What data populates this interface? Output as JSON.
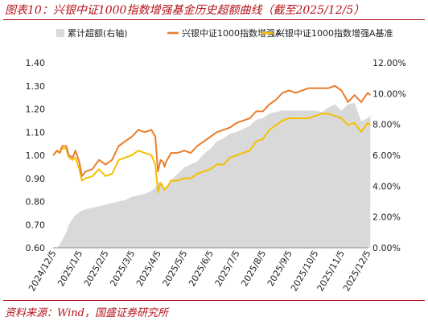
{
  "title": "图表10：兴银中证1000指数增强基金历史超额曲线（截至2025/12/5）",
  "source": "资料来源：Wind，国盛证券研究所",
  "chart_data": {
    "type": "line",
    "legend": [
      {
        "name": "累计超额(右轴)",
        "color": "#d9d9d9",
        "kind": "area"
      },
      {
        "name": "兴银中证1000指数增强A",
        "color": "#e97d2b",
        "kind": "line"
      },
      {
        "name": "兴银中证1000指数增强A基准",
        "color": "#f5c000",
        "kind": "line"
      }
    ],
    "legend_position": "top",
    "x_tick_labels": [
      "2024/12/5",
      "2025/1/5",
      "2025/2/5",
      "2025/3/5",
      "2025/4/5",
      "2025/5/5",
      "2025/6/5",
      "2025/7/5",
      "2025/8/5",
      "2025/9/5",
      "2025/10/5",
      "2025/11/5",
      "2025/12/5"
    ],
    "left_axis": {
      "min": 0.6,
      "max": 1.4,
      "ticks": [
        "0.60",
        "0.70",
        "0.80",
        "0.90",
        "1.00",
        "1.10",
        "1.20",
        "1.30",
        "1.40"
      ]
    },
    "right_axis": {
      "min": 0,
      "max": 12,
      "ticks": [
        "0.00%",
        "2.00%",
        "4.00%",
        "6.00%",
        "8.00%",
        "10.00%",
        "12.00%"
      ]
    },
    "x": [
      0,
      0.15,
      0.25,
      0.35,
      0.5,
      0.6,
      0.75,
      0.85,
      1.0,
      1.1,
      1.25,
      1.5,
      1.75,
      2.0,
      2.25,
      2.5,
      2.75,
      3.0,
      3.25,
      3.5,
      3.75,
      3.9,
      4.0,
      4.1,
      4.2,
      4.25,
      4.3,
      4.4,
      4.5,
      4.75,
      5.0,
      5.25,
      5.5,
      5.75,
      6.0,
      6.25,
      6.5,
      6.75,
      7.0,
      7.25,
      7.5,
      7.75,
      8.0,
      8.25,
      8.5,
      8.75,
      9.0,
      9.25,
      9.5,
      9.75,
      10.0,
      10.25,
      10.5,
      10.75,
      11.0,
      11.25,
      11.5,
      11.75,
      12.0,
      12.1
    ],
    "series": [
      {
        "name": "累计超额(右轴)",
        "axis": "right",
        "values": [
          0,
          0,
          0.2,
          0.5,
          1.0,
          1.5,
          1.9,
          2.1,
          2.3,
          2.4,
          2.5,
          2.6,
          2.7,
          2.8,
          2.9,
          3.0,
          3.1,
          3.3,
          3.4,
          3.5,
          3.7,
          3.9,
          4.2,
          4.3,
          4.1,
          3.8,
          3.9,
          4.2,
          4.4,
          4.8,
          5.2,
          5.4,
          5.6,
          6.1,
          6.4,
          6.9,
          7.1,
          7.4,
          7.5,
          7.7,
          7.9,
          8.3,
          8.4,
          8.7,
          8.8,
          8.9,
          8.9,
          8.9,
          8.9,
          8.9,
          8.9,
          8.8,
          9.1,
          9.3,
          8.9,
          9.3,
          9.4,
          8.2,
          8.4,
          8.6
        ]
      },
      {
        "name": "兴银中证1000指数增强A",
        "axis": "left",
        "values": [
          1.0,
          1.02,
          1.01,
          1.04,
          1.04,
          1.0,
          0.99,
          1.02,
          0.97,
          0.91,
          0.93,
          0.94,
          0.98,
          0.96,
          0.98,
          1.04,
          1.06,
          1.08,
          1.11,
          1.1,
          1.11,
          1.08,
          0.93,
          0.98,
          0.97,
          0.95,
          0.97,
          0.99,
          1.01,
          1.01,
          1.02,
          1.01,
          1.04,
          1.06,
          1.08,
          1.1,
          1.11,
          1.12,
          1.14,
          1.15,
          1.16,
          1.19,
          1.19,
          1.22,
          1.24,
          1.27,
          1.28,
          1.27,
          1.28,
          1.29,
          1.29,
          1.29,
          1.29,
          1.3,
          1.28,
          1.23,
          1.26,
          1.23,
          1.27,
          1.26
        ]
      },
      {
        "name": "兴银中证1000指数增强A基准",
        "axis": "left",
        "values": [
          1.0,
          1.02,
          1.01,
          1.03,
          1.03,
          0.99,
          0.98,
          0.99,
          0.94,
          0.89,
          0.9,
          0.91,
          0.94,
          0.91,
          0.92,
          0.98,
          0.99,
          1.0,
          1.02,
          1.01,
          1.0,
          0.96,
          0.84,
          0.88,
          0.86,
          0.85,
          0.86,
          0.87,
          0.89,
          0.89,
          0.9,
          0.9,
          0.92,
          0.93,
          0.94,
          0.96,
          0.96,
          0.99,
          1.0,
          1.01,
          1.02,
          1.06,
          1.07,
          1.11,
          1.13,
          1.15,
          1.16,
          1.16,
          1.16,
          1.16,
          1.17,
          1.18,
          1.18,
          1.17,
          1.16,
          1.13,
          1.14,
          1.1,
          1.14,
          1.13
        ]
      }
    ]
  }
}
